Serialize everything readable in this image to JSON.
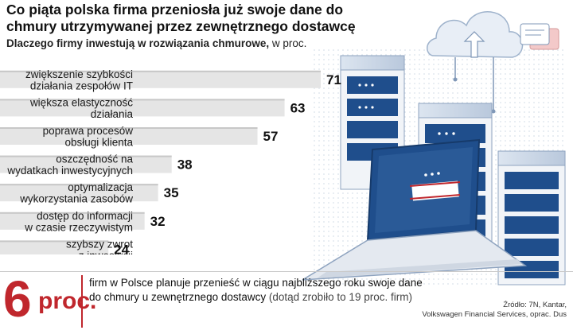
{
  "header": {
    "title": "Co piąta polska firma przeniosła już swoje dane do chmury utrzymywanej przez zewnętrznego dostawcę",
    "subtitle_bold": "Dlaczego firmy inwestują w rozwiązania chmurowe,",
    "subtitle_unit": " w proc."
  },
  "chart_data": {
    "type": "bar",
    "orientation": "horizontal",
    "title": "Dlaczego firmy inwestują w rozwiązania chmurowe, w proc.",
    "categories": [
      [
        "zwiększenie szybkości",
        "działania zespołów IT"
      ],
      [
        "większa elastyczność",
        "działania"
      ],
      [
        "poprawa procesów",
        "obsługi klienta"
      ],
      [
        "oszczędność na",
        "wydatkach inwestycyjnych"
      ],
      [
        "optymalizacja",
        "wykorzystania zasobów"
      ],
      [
        "dostęp do informacji",
        "w czasie rzeczywistym"
      ],
      [
        "szybszy zwrot",
        "z inwestycji"
      ]
    ],
    "values": [
      71,
      63,
      57,
      38,
      35,
      32,
      24
    ],
    "xlabel": "",
    "ylabel": "",
    "xlim": [
      0,
      71
    ],
    "colors": {
      "bar": "#e5e5e5",
      "bar_top": "#c7c7c7"
    }
  },
  "callout": {
    "number": "6",
    "unit": "proc.",
    "text_main": "firm w Polsce planuje przenieść w ciągu najbliższego roku swoje dane do chmury u zewnętrznego dostawcy",
    "text_note": " (dotąd zrobiło to 19 proc. firm)",
    "color": "#c0272d"
  },
  "source": {
    "line1": "Źródło: 7N, Kantar,",
    "line2": "Volkswagen Financial Services, oprac. Dus"
  },
  "colors": {
    "accent_red": "#c0272d",
    "server_blue": "#1f4e8c",
    "cloud": "#e6edf6"
  }
}
